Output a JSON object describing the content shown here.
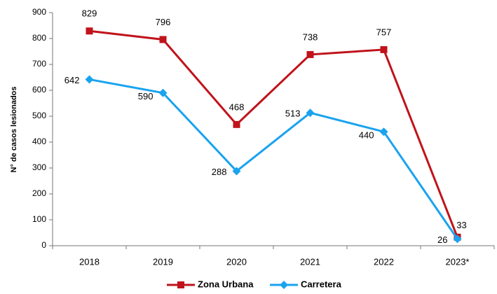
{
  "chart_data": {
    "type": "line",
    "ylabel": "N° de casos lesionados",
    "categories": [
      "2018",
      "2019",
      "2020",
      "2021",
      "2022",
      "2023*"
    ],
    "series": [
      {
        "name": "Zona Urbana",
        "color": "#c0131b",
        "marker": "square",
        "values": [
          829,
          796,
          468,
          738,
          757,
          33
        ]
      },
      {
        "name": "Carretera",
        "color": "#1aa3ef",
        "marker": "diamond",
        "values": [
          642,
          590,
          288,
          513,
          440,
          26
        ]
      }
    ],
    "ylim": [
      0,
      900
    ],
    "yticks": [
      0,
      100,
      200,
      300,
      400,
      500,
      600,
      700,
      800,
      900
    ],
    "grid": false,
    "legend": "bottom"
  }
}
